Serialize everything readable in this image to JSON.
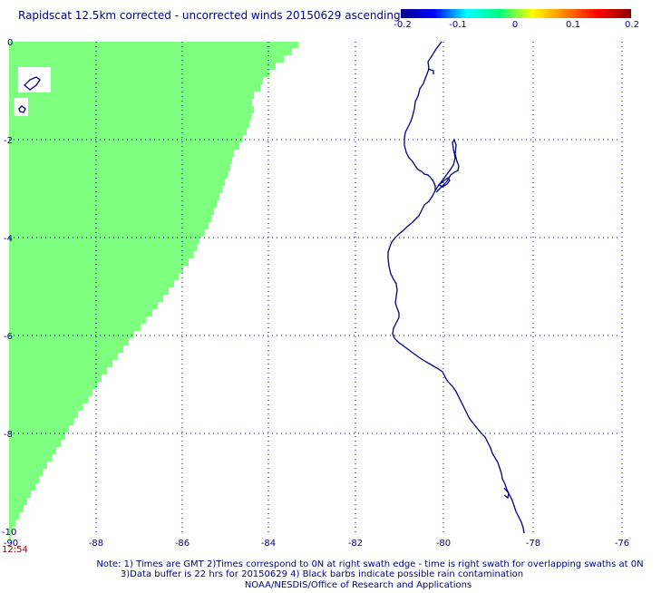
{
  "title": "Rapidscat 12.5km corrected - uncorrected winds 20150629 ascending",
  "colorbar": {
    "tick_labels": [
      "-0.2",
      "-0.1",
      "0",
      "0.1",
      "0.2"
    ],
    "stops": [
      "#00008b",
      "#0000ff",
      "#00ffff",
      "#00ff7f",
      "#ffff00",
      "#ff8000",
      "#ff0000",
      "#8b0000"
    ]
  },
  "map": {
    "lon_range": [
      -90,
      -75
    ],
    "lat_range": [
      -10,
      0
    ],
    "x_tick_labels": [
      "-90",
      "-88",
      "-86",
      "-84",
      "-82",
      "-80",
      "-78",
      "-76"
    ],
    "y_tick_labels": [
      "0",
      "-2",
      "-4",
      "-6",
      "-8",
      "-10"
    ],
    "time_label": "12:54",
    "swath_color": "#7fff7f",
    "coast_color": "#000080"
  },
  "footer": {
    "line1": "Note: 1) Times are GMT 2)Times correspond to 0N at right swath edge - time is right swath for overlapping swaths at 0N",
    "line2": "3)Data buffer is 22 hrs for 20150629 4) Black barbs indicate possible rain contamination",
    "line3": "NOAA/NESDIS/Office of Research and Applications"
  }
}
